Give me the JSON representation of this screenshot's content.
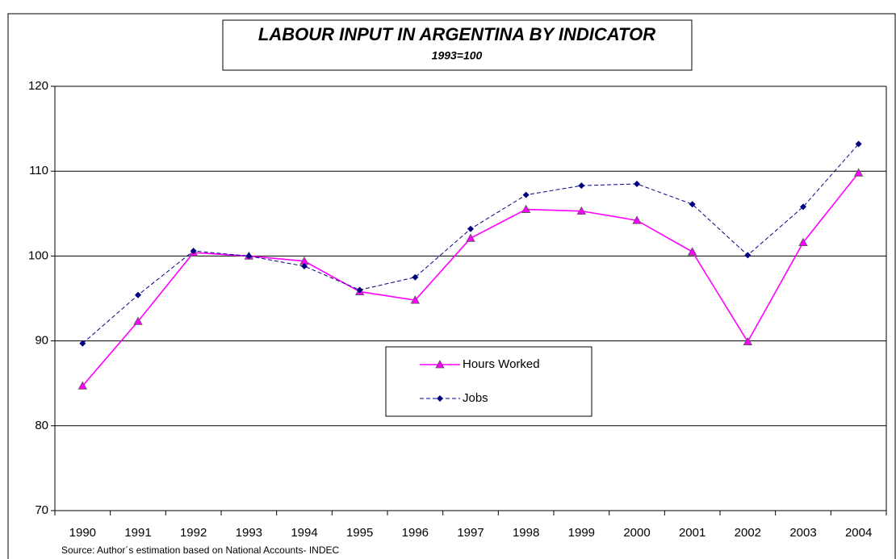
{
  "chart_data": {
    "type": "line",
    "title": "LABOUR INPUT IN ARGENTINA BY INDICATOR",
    "subtitle": "1993=100",
    "source": "Source: Author´s estimation based on National Accounts- INDEC",
    "categories": [
      "1990",
      "1991",
      "1992",
      "1993",
      "1994",
      "1995",
      "1996",
      "1997",
      "1998",
      "1999",
      "2000",
      "2001",
      "2002",
      "2003",
      "2004"
    ],
    "series": [
      {
        "name": "Hours Worked",
        "color": "#ff00ff",
        "marker": "triangle",
        "dash": false,
        "values": [
          84.7,
          92.3,
          100.4,
          100,
          99.4,
          95.8,
          94.8,
          102.1,
          105.5,
          105.3,
          104.2,
          100.5,
          89.9,
          101.6,
          109.8
        ]
      },
      {
        "name": "Jobs",
        "color": "#000080",
        "marker": "diamond",
        "dash": true,
        "values": [
          89.7,
          95.4,
          100.6,
          100,
          98.8,
          96,
          97.5,
          103.2,
          107.2,
          108.3,
          108.5,
          106.1,
          100.1,
          105.8,
          113.2
        ]
      }
    ],
    "ylim": [
      70,
      120
    ],
    "yticks": [
      70,
      80,
      90,
      100,
      110,
      120
    ],
    "grid": true
  }
}
